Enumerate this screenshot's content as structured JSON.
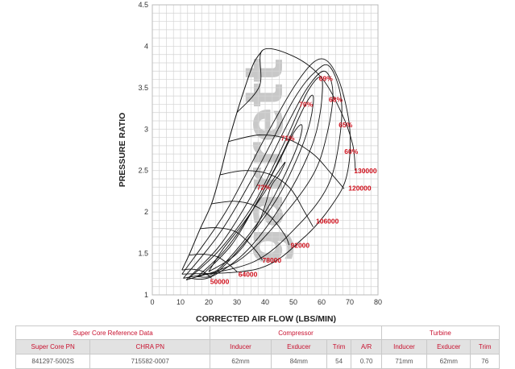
{
  "chart_data": {
    "type": "line",
    "title": "",
    "xlabel": "CORRECTED AIR FLOW (LBS/MIN)",
    "ylabel": "PRESSURE RATIO",
    "xlim": [
      0,
      80
    ],
    "ylim": [
      1,
      4.5
    ],
    "x_ticks": [
      0,
      10,
      20,
      30,
      40,
      50,
      60,
      70,
      80
    ],
    "y_ticks": [
      "1",
      "1.5",
      "2",
      "2.5",
      "3",
      "3.5",
      "4",
      "4.5"
    ],
    "grid": true,
    "watermark": "garrett",
    "surge_line": [
      [
        10.5,
        1.3
      ],
      [
        13,
        1.48
      ],
      [
        17,
        1.8
      ],
      [
        21,
        2.1
      ],
      [
        24,
        2.45
      ],
      [
        27,
        2.85
      ],
      [
        30,
        3.2
      ],
      [
        33,
        3.52
      ],
      [
        36,
        3.8
      ],
      [
        39,
        3.95
      ]
    ],
    "speed_lines": [
      {
        "label": "50000",
        "points": [
          [
            10.5,
            1.3
          ],
          [
            14,
            1.31
          ],
          [
            18,
            1.28
          ],
          [
            21,
            1.2
          ]
        ],
        "label_at": [
          20.5,
          1.13
        ]
      },
      {
        "label": "64000",
        "points": [
          [
            13,
            1.48
          ],
          [
            18,
            1.49
          ],
          [
            23,
            1.46
          ],
          [
            27,
            1.37
          ],
          [
            30,
            1.28
          ]
        ],
        "label_at": [
          30.5,
          1.22
        ]
      },
      {
        "label": "78000",
        "points": [
          [
            17,
            1.8
          ],
          [
            23,
            1.81
          ],
          [
            29,
            1.77
          ],
          [
            33,
            1.67
          ],
          [
            37,
            1.52
          ],
          [
            39,
            1.42
          ]
        ],
        "label_at": [
          39,
          1.39
        ]
      },
      {
        "label": "92000",
        "points": [
          [
            21,
            2.1
          ],
          [
            29,
            2.13
          ],
          [
            36,
            2.08
          ],
          [
            42,
            1.94
          ],
          [
            47,
            1.72
          ],
          [
            48.5,
            1.6
          ]
        ],
        "label_at": [
          49,
          1.57
        ]
      },
      {
        "label": "106000",
        "points": [
          [
            24,
            2.45
          ],
          [
            33,
            2.5
          ],
          [
            42,
            2.45
          ],
          [
            49,
            2.28
          ],
          [
            54,
            2.0
          ],
          [
            57,
            1.82
          ]
        ],
        "label_at": [
          58,
          1.86
        ]
      },
      {
        "label": "120000",
        "points": [
          [
            27,
            2.85
          ],
          [
            38,
            2.93
          ],
          [
            48,
            2.88
          ],
          [
            57,
            2.7
          ],
          [
            63,
            2.48
          ],
          [
            68,
            2.28
          ]
        ],
        "label_at": [
          69.5,
          2.26
        ]
      },
      {
        "label": "130000",
        "points": [
          [
            30,
            3.2
          ],
          [
            38,
            3.52
          ],
          [
            39,
            3.95
          ],
          [
            50,
            3.88
          ],
          [
            60,
            3.62
          ],
          [
            67,
            3.2
          ],
          [
            71,
            2.82
          ],
          [
            72,
            2.5
          ]
        ],
        "label_at": [
          71.5,
          2.47
        ]
      }
    ],
    "efficiency_islands": [
      {
        "label": "72%",
        "label_at": [
          39.5,
          2.27
        ],
        "points": [
          [
            20,
            1.28
          ],
          [
            30,
            1.5
          ],
          [
            38,
            1.9
          ],
          [
            42,
            2.3
          ],
          [
            45,
            2.45
          ],
          [
            47,
            2.6
          ],
          [
            42,
            2.35
          ],
          [
            33,
            1.9
          ],
          [
            25,
            1.55
          ],
          [
            20,
            1.28
          ]
        ]
      },
      {
        "label": "71%",
        "label_at": [
          48,
          2.86
        ],
        "points": [
          [
            18,
            1.25
          ],
          [
            28,
            1.6
          ],
          [
            36,
            2.05
          ],
          [
            44,
            2.55
          ],
          [
            50,
            2.95
          ],
          [
            53,
            3.05
          ],
          [
            52,
            2.85
          ],
          [
            47,
            2.45
          ],
          [
            40,
            2.0
          ],
          [
            30,
            1.55
          ],
          [
            22,
            1.27
          ],
          [
            18,
            1.25
          ]
        ]
      },
      {
        "label": "70%",
        "label_at": [
          54.5,
          3.27
        ],
        "points": [
          [
            16,
            1.22
          ],
          [
            26,
            1.55
          ],
          [
            36,
            2.05
          ],
          [
            46,
            2.7
          ],
          [
            54,
            3.28
          ],
          [
            57,
            3.4
          ],
          [
            56,
            3.1
          ],
          [
            52,
            2.7
          ],
          [
            44,
            2.15
          ],
          [
            32,
            1.6
          ],
          [
            22,
            1.25
          ],
          [
            16,
            1.22
          ]
        ]
      },
      {
        "label": "69%",
        "label_at": [
          61.5,
          3.58
        ],
        "points": [
          [
            13,
            1.2
          ],
          [
            24,
            1.55
          ],
          [
            36,
            2.1
          ],
          [
            47,
            2.85
          ],
          [
            55,
            3.45
          ],
          [
            60,
            3.62
          ],
          [
            59.5,
            3.2
          ],
          [
            56,
            2.75
          ],
          [
            47,
            2.15
          ],
          [
            34,
            1.55
          ],
          [
            21,
            1.22
          ],
          [
            13,
            1.2
          ]
        ]
      },
      {
        "label": "68%",
        "label_at": [
          65,
          3.33
        ],
        "points": [
          [
            12,
            1.18
          ],
          [
            24,
            1.6
          ],
          [
            36,
            2.25
          ],
          [
            47,
            3.0
          ],
          [
            55,
            3.5
          ],
          [
            61,
            3.7
          ],
          [
            64,
            3.45
          ],
          [
            62,
            2.95
          ],
          [
            57,
            2.45
          ],
          [
            45,
            1.9
          ],
          [
            30,
            1.4
          ],
          [
            12,
            1.18
          ]
        ]
      },
      {
        "label": "65%",
        "label_at": [
          68.5,
          3.02
        ],
        "points": [
          [
            11,
            1.2
          ],
          [
            24,
            1.75
          ],
          [
            37,
            2.5
          ],
          [
            50,
            3.35
          ],
          [
            58,
            3.7
          ],
          [
            63,
            3.75
          ],
          [
            67,
            3.35
          ],
          [
            66,
            2.8
          ],
          [
            62,
            2.3
          ],
          [
            52,
            1.85
          ],
          [
            36,
            1.4
          ],
          [
            11,
            1.2
          ]
        ]
      },
      {
        "label": "60%",
        "label_at": [
          70.5,
          2.7
        ],
        "points": [
          [
            10.5,
            1.25
          ],
          [
            26,
            2.0
          ],
          [
            40,
            2.9
          ],
          [
            52,
            3.6
          ],
          [
            60,
            3.85
          ],
          [
            66,
            3.6
          ],
          [
            70,
            3.0
          ],
          [
            69,
            2.45
          ],
          [
            64,
            2.1
          ],
          [
            54,
            1.7
          ],
          [
            38,
            1.32
          ],
          [
            10.5,
            1.25
          ]
        ]
      }
    ]
  },
  "table": {
    "group_headers": [
      "Super Core Reference Data",
      "Compressor",
      "Turbine"
    ],
    "columns": [
      "Super Core PN",
      "CHRA PN",
      "Inducer",
      "Exducer",
      "Trim",
      "A/R",
      "Inducer",
      "Exducer",
      "Trim"
    ],
    "rows": [
      [
        "841297-5002S",
        "715582-0007",
        "62mm",
        "84mm",
        "54",
        "0.70",
        "71mm",
        "62mm",
        "76"
      ]
    ]
  },
  "colors": {
    "curve": "#111111",
    "grid": "#d4d4d4",
    "label": "#d0101c",
    "header_bg": "#e2e2e2",
    "header_text": "#c8102e"
  }
}
